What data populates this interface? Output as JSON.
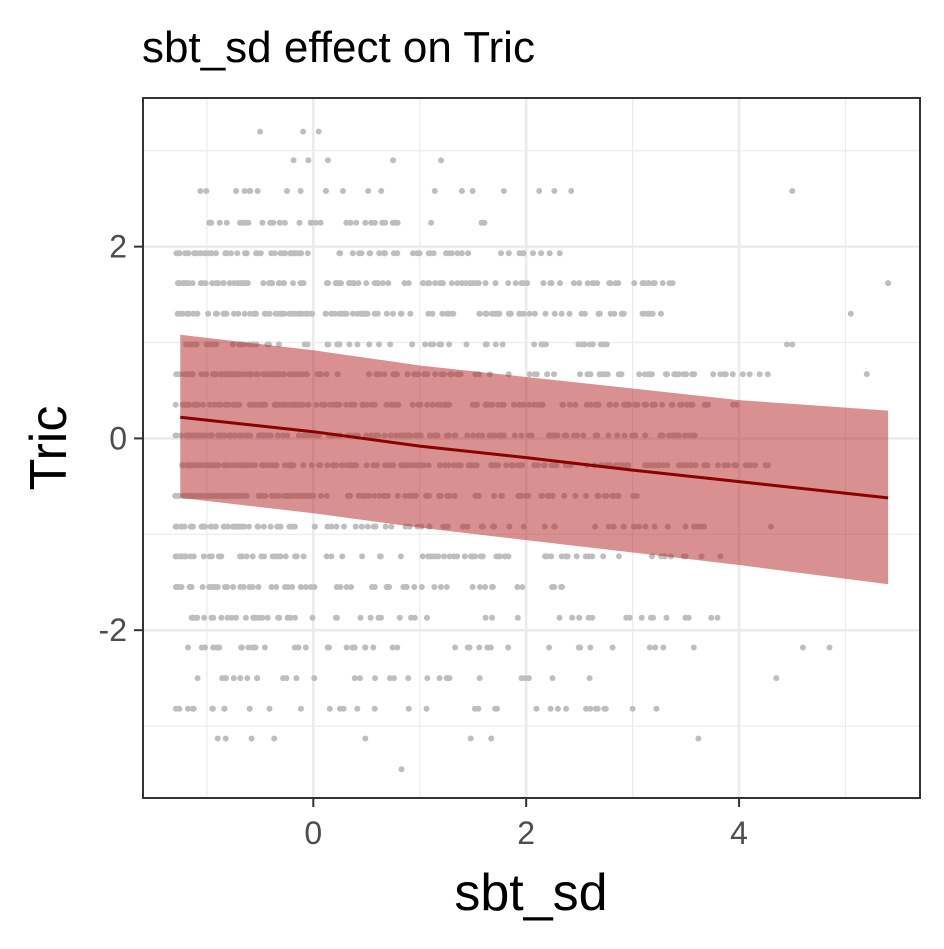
{
  "chart_data": {
    "type": "scatter",
    "title": "sbt_sd effect on Tric",
    "xlabel": "sbt_sd",
    "ylabel": "Tric",
    "xlim": [
      -1.6,
      5.7
    ],
    "ylim": [
      -3.75,
      3.55
    ],
    "x_ticks": [
      0,
      2,
      4
    ],
    "x_tick_labels": [
      "0",
      "2",
      "4"
    ],
    "x_minor_ticks": [
      -1,
      1,
      3,
      5
    ],
    "y_ticks": [
      -2,
      0,
      2
    ],
    "y_tick_labels": [
      "-2",
      "0",
      "2"
    ],
    "y_minor_ticks": [
      -3,
      -1,
      1,
      3
    ],
    "grid": true,
    "colors": {
      "points": "#bebebe",
      "line": "#8b0000",
      "ribbon": "#b22222",
      "panel_border": "#333333",
      "grid": "#ebebeb",
      "tick_text": "#4d4d4d"
    },
    "y_levels": [
      3.2,
      2.9,
      2.58,
      2.25,
      1.93,
      1.62,
      1.3,
      0.98,
      0.67,
      0.35,
      0.03,
      -0.28,
      -0.6,
      -0.92,
      -1.23,
      -1.55,
      -1.87,
      -2.18,
      -2.5,
      -2.82,
      -3.13,
      -3.45
    ],
    "level_ranges": [
      [
        -0.5,
        0.1
      ],
      [
        -0.4,
        1.4
      ],
      [
        -1.1,
        2.6
      ],
      [
        -1.0,
        1.8
      ],
      [
        -1.3,
        2.5
      ],
      [
        -1.3,
        3.4
      ],
      [
        -1.3,
        3.3
      ],
      [
        -1.2,
        3.1
      ],
      [
        -1.3,
        4.3
      ],
      [
        -1.3,
        4.0
      ],
      [
        -1.3,
        3.6
      ],
      [
        -1.3,
        4.3
      ],
      [
        -1.3,
        3.2
      ],
      [
        -1.3,
        3.7
      ],
      [
        -1.3,
        3.9
      ],
      [
        -1.3,
        2.5
      ],
      [
        -1.2,
        3.8
      ],
      [
        -1.2,
        3.6
      ],
      [
        -1.1,
        2.6
      ],
      [
        -1.3,
        3.6
      ],
      [
        -1.0,
        3.8
      ],
      [
        0.8,
        0.9
      ]
    ],
    "level_counts": [
      2,
      4,
      20,
      40,
      75,
      110,
      120,
      60,
      140,
      160,
      170,
      170,
      140,
      90,
      80,
      60,
      55,
      45,
      30,
      35,
      8,
      1
    ],
    "extra_points": [
      {
        "x": 0.05,
        "y": 3.2
      },
      {
        "x": 1.2,
        "y": 2.9
      },
      {
        "x": 4.5,
        "y": 2.58
      },
      {
        "x": 5.4,
        "y": 1.62
      },
      {
        "x": 5.05,
        "y": 1.3
      },
      {
        "x": 4.5,
        "y": 0.98
      },
      {
        "x": 5.2,
        "y": 0.67
      },
      {
        "x": 4.85,
        "y": -2.18
      },
      {
        "x": 4.6,
        "y": -2.18
      },
      {
        "x": 4.35,
        "y": -2.5
      },
      {
        "x": 4.3,
        "y": -0.92
      },
      {
        "x": 4.25,
        "y": -0.28
      },
      {
        "x": 4.45,
        "y": 0.98
      }
    ],
    "fit": {
      "x": [
        -1.25,
        0,
        1,
        2,
        3,
        4,
        5.4
      ],
      "y": [
        0.22,
        0.07,
        -0.08,
        -0.2,
        -0.33,
        -0.45,
        -0.62
      ],
      "lower": [
        -0.62,
        -0.78,
        -0.93,
        -1.06,
        -1.19,
        -1.32,
        -1.52
      ],
      "upper": [
        1.08,
        0.92,
        0.76,
        0.64,
        0.52,
        0.4,
        0.29
      ]
    }
  }
}
